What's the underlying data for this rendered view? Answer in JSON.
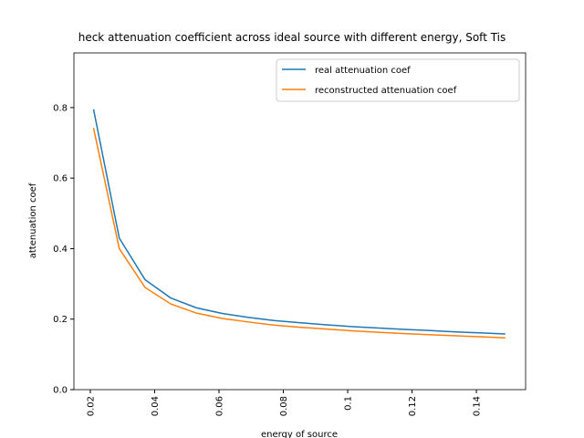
{
  "chart_data": {
    "type": "line",
    "title": "heck attenuation coefficient across ideal source with different energy, Soft Tis",
    "x_label": "energy of source",
    "y_label": "attenuation coef",
    "x": [
      0.021,
      0.029,
      0.037,
      0.045,
      0.053,
      0.061,
      0.069,
      0.077,
      0.085,
      0.093,
      0.101,
      0.109,
      0.117,
      0.125,
      0.133,
      0.141,
      0.149
    ],
    "series": [
      {
        "name": "real attenuation coef",
        "color": "#1f77b4",
        "values": [
          0.795,
          0.43,
          0.312,
          0.26,
          0.232,
          0.216,
          0.205,
          0.196,
          0.19,
          0.184,
          0.179,
          0.175,
          0.171,
          0.168,
          0.164,
          0.161,
          0.158
        ]
      },
      {
        "name": "reconstructed attenuation coef",
        "color": "#ff7f0e",
        "values": [
          0.742,
          0.4,
          0.29,
          0.243,
          0.217,
          0.202,
          0.192,
          0.183,
          0.177,
          0.172,
          0.167,
          0.163,
          0.159,
          0.156,
          0.153,
          0.15,
          0.147
        ]
      }
    ],
    "xlim": [
      0.0149,
      0.1553
    ],
    "ylim": [
      0,
      0.955
    ],
    "xticks": [
      0.02,
      0.04,
      0.06,
      0.08,
      0.1,
      0.12,
      0.14
    ],
    "yticks": [
      {
        "value": 0,
        "label": "0.0"
      },
      0.2,
      0.4,
      0.6,
      0.8
    ],
    "legend": "upper right",
    "grid": false
  }
}
